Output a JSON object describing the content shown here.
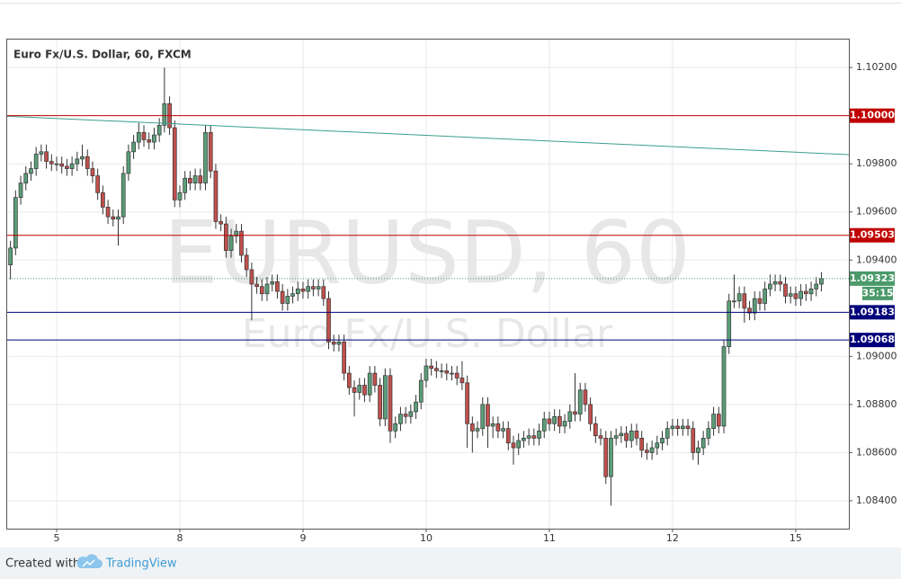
{
  "chart_data": {
    "type": "candlestick",
    "title": "Euro Fx/U.S. Dollar, 60, FXCM",
    "watermark": "EURUSD, 60",
    "watermark_subtitle": "Euro Fx/U.S. Dollar",
    "footer_text": "Created with",
    "footer_brand": "TradingView",
    "up_color": "#5a9e78",
    "down_color": "#c0504d",
    "xlim": [
      -9.81,
      154.35
    ],
    "xticks": [
      {
        "value": 0,
        "label": "5"
      },
      {
        "value": 24,
        "label": "8"
      },
      {
        "value": 48,
        "label": "9"
      },
      {
        "value": 72,
        "label": "10"
      },
      {
        "value": 96,
        "label": "11"
      },
      {
        "value": 120,
        "label": "12"
      },
      {
        "value": 144,
        "label": "15"
      }
    ],
    "ylim": [
      1.08284,
      1.1032
    ],
    "yticks": [
      {
        "value": 1.102,
        "label": "1.10200"
      },
      {
        "value": 1.098,
        "label": "1.09800"
      },
      {
        "value": 1.096,
        "label": "1.09600"
      },
      {
        "value": 1.094,
        "label": "1.09400"
      },
      {
        "value": 1.09,
        "label": "1.09000"
      },
      {
        "value": 1.088,
        "label": "1.08800"
      },
      {
        "value": 1.086,
        "label": "1.08600"
      },
      {
        "value": 1.084,
        "label": "1.08400"
      }
    ],
    "grid": true,
    "x": [
      -9,
      -8,
      -7,
      -6,
      -5,
      -4,
      -3,
      -2,
      -1,
      0,
      1,
      2,
      3,
      4,
      5,
      6,
      7,
      8,
      9,
      10,
      11,
      12,
      13,
      14,
      15,
      16,
      17,
      18,
      19,
      20,
      21,
      22,
      23,
      24,
      25,
      26,
      27,
      28,
      29,
      30,
      31,
      32,
      33,
      34,
      35,
      36,
      37,
      38,
      39,
      40,
      41,
      42,
      43,
      44,
      45,
      46,
      47,
      48,
      49,
      50,
      51,
      52,
      53,
      54,
      55,
      56,
      57,
      58,
      59,
      60,
      61,
      62,
      63,
      64,
      65,
      66,
      67,
      68,
      69,
      70,
      71,
      72,
      73,
      74,
      75,
      76,
      77,
      78,
      79,
      80,
      81,
      82,
      83,
      84,
      85,
      86,
      87,
      88,
      89,
      90,
      91,
      92,
      93,
      94,
      95,
      96,
      97,
      98,
      99,
      100,
      101,
      102,
      103,
      104,
      105,
      106,
      107,
      108,
      109,
      110,
      111,
      112,
      113,
      114,
      115,
      116,
      117,
      118,
      119,
      120,
      121,
      122,
      123,
      124,
      125,
      126,
      127,
      128,
      129,
      130,
      131,
      132,
      133,
      134,
      135,
      136,
      137,
      138,
      139,
      140,
      141,
      142,
      143,
      144,
      145,
      146,
      147,
      148,
      149
    ],
    "open": [
      1.0938,
      1.0945,
      1.0966,
      1.0972,
      1.0976,
      1.0978,
      1.0984,
      1.0985,
      1.0981,
      1.098,
      1.098,
      1.0979,
      1.0978,
      1.098,
      1.0982,
      1.0983,
      1.0978,
      1.0975,
      1.0968,
      1.0962,
      1.0958,
      1.0957,
      1.0958,
      1.0976,
      1.0985,
      1.0989,
      1.0993,
      1.099,
      1.0989,
      1.0992,
      1.0996,
      1.1005,
      1.0995,
      1.0965,
      1.0968,
      1.0974,
      1.0972,
      1.0975,
      1.0972,
      1.0993,
      1.0977,
      1.0956,
      1.0955,
      1.0944,
      1.095,
      1.0952,
      1.0942,
      1.0936,
      1.093,
      1.0929,
      1.0926,
      1.093,
      1.0931,
      1.0927,
      1.0922,
      1.0925,
      1.0926,
      1.0928,
      1.0927,
      1.0929,
      1.0928,
      1.0929,
      1.0924,
      1.0906,
      1.0905,
      1.0906,
      1.0893,
      1.0887,
      1.0885,
      1.0888,
      1.0884,
      1.0893,
      1.0888,
      1.0874,
      1.0892,
      1.0869,
      1.0872,
      1.0876,
      1.0875,
      1.0877,
      1.0881,
      1.089,
      1.0896,
      1.0895,
      1.0894,
      1.0894,
      1.0893,
      1.0893,
      1.0891,
      1.0889,
      1.0872,
      1.0869,
      1.087,
      1.088,
      1.0871,
      1.0872,
      1.0869,
      1.087,
      1.0864,
      1.0862,
      1.0865,
      1.0866,
      1.0867,
      1.0866,
      1.0869,
      1.0874,
      1.0872,
      1.0875,
      1.0871,
      1.0873,
      1.0877,
      1.0876,
      1.0886,
      1.088,
      1.0872,
      1.0867,
      1.0866,
      1.085,
      1.0866,
      1.0867,
      1.0868,
      1.0865,
      1.0869,
      1.0866,
      1.0861,
      1.086,
      1.0862,
      1.0864,
      1.0866,
      1.087,
      1.0871,
      1.087,
      1.0871,
      1.087,
      1.086,
      1.0862,
      1.0866,
      1.087,
      1.0876,
      1.0871,
      1.0904,
      1.0923,
      1.0923,
      1.0926,
      1.092,
      1.0918,
      1.0924,
      1.0922,
      1.0928,
      1.093,
      1.0931,
      1.093,
      1.0925,
      1.0926,
      1.0924,
      1.0927,
      1.0926,
      1.0928,
      1.093
    ],
    "high": [
      1.0948,
      1.0969,
      1.0975,
      1.0979,
      1.0981,
      1.0987,
      1.0988,
      1.0988,
      1.0984,
      1.0983,
      1.0983,
      1.0982,
      1.0983,
      1.0985,
      1.0988,
      1.0986,
      1.0981,
      1.0978,
      1.0971,
      1.0965,
      1.0961,
      1.0961,
      1.0979,
      1.0988,
      1.0992,
      1.0997,
      1.0996,
      1.0993,
      1.0995,
      1.0999,
      1.102,
      1.1008,
      1.0998,
      1.0971,
      1.0977,
      1.0977,
      1.0978,
      1.0978,
      1.0996,
      1.0996,
      1.098,
      1.0959,
      1.0958,
      1.0953,
      1.0955,
      1.0955,
      1.0945,
      1.0939,
      1.0933,
      1.0932,
      1.0933,
      1.0934,
      1.0934,
      1.093,
      1.0928,
      1.0929,
      1.0931,
      1.0931,
      1.0932,
      1.0932,
      1.0932,
      1.0932,
      1.0927,
      1.0909,
      1.0909,
      1.0909,
      1.0896,
      1.089,
      1.0891,
      1.0891,
      1.0896,
      1.0896,
      1.0891,
      1.0895,
      1.0895,
      1.0875,
      1.0879,
      1.0879,
      1.088,
      1.0884,
      1.0893,
      1.0899,
      1.0899,
      1.0898,
      1.0897,
      1.0897,
      1.0896,
      1.0896,
      1.0898,
      1.0892,
      1.0875,
      1.0873,
      1.0883,
      1.0883,
      1.0875,
      1.0875,
      1.0873,
      1.0873,
      1.0867,
      1.0868,
      1.0869,
      1.087,
      1.087,
      1.0872,
      1.0877,
      1.0877,
      1.0878,
      1.0878,
      1.0876,
      1.088,
      1.0893,
      1.0889,
      1.0889,
      1.0883,
      1.0875,
      1.087,
      1.0869,
      1.0869,
      1.087,
      1.0871,
      1.0871,
      1.0872,
      1.0872,
      1.0869,
      1.0864,
      1.0865,
      1.0867,
      1.0869,
      1.0873,
      1.0874,
      1.0874,
      1.0874,
      1.0874,
      1.0873,
      1.0865,
      1.0869,
      1.0873,
      1.0879,
      1.0879,
      1.0907,
      1.0926,
      1.0934,
      1.0929,
      1.0929,
      1.0923,
      1.0927,
      1.0927,
      1.0931,
      1.0934,
      1.0934,
      1.0934,
      1.0933,
      1.0929,
      1.0929,
      1.093,
      1.093,
      1.0931,
      1.0933,
      1.0935
    ],
    "low": [
      1.0932,
      1.0942,
      1.0963,
      1.0969,
      1.0973,
      1.0975,
      1.0981,
      1.0978,
      1.0977,
      1.0977,
      1.0976,
      1.0975,
      1.0975,
      1.0977,
      1.0979,
      1.0975,
      1.0972,
      1.0965,
      1.0959,
      1.0955,
      1.0954,
      1.0946,
      1.0955,
      1.0973,
      1.0982,
      1.0986,
      1.0987,
      1.0986,
      1.0986,
      1.0989,
      1.0993,
      1.0992,
      1.0962,
      1.0962,
      1.0965,
      1.0969,
      1.0969,
      1.0969,
      1.0969,
      1.0974,
      1.0953,
      1.0952,
      1.0941,
      1.0941,
      1.0947,
      1.0939,
      1.0933,
      1.0915,
      1.0926,
      1.0923,
      1.0923,
      1.0927,
      1.0924,
      1.0919,
      1.0919,
      1.0922,
      1.0923,
      1.0924,
      1.0924,
      1.0925,
      1.0925,
      1.0921,
      1.0903,
      1.0902,
      1.0902,
      1.089,
      1.0884,
      1.0875,
      1.0882,
      1.0881,
      1.0881,
      1.0885,
      1.0871,
      1.0871,
      1.0864,
      1.0866,
      1.0869,
      1.0872,
      1.0872,
      1.0874,
      1.0878,
      1.0887,
      1.0892,
      1.0891,
      1.0891,
      1.089,
      1.089,
      1.0888,
      1.0886,
      1.0862,
      1.086,
      1.0866,
      1.0867,
      1.0862,
      1.0866,
      1.0866,
      1.0866,
      1.0861,
      1.0855,
      1.0859,
      1.0862,
      1.0863,
      1.0863,
      1.0863,
      1.0866,
      1.0869,
      1.0869,
      1.0868,
      1.0868,
      1.087,
      1.0873,
      1.0873,
      1.0877,
      1.0869,
      1.0864,
      1.0863,
      1.0847,
      1.0838,
      1.0863,
      1.0864,
      1.0862,
      1.0862,
      1.0863,
      1.0858,
      1.0857,
      1.0857,
      1.0859,
      1.0861,
      1.0863,
      1.0867,
      1.0867,
      1.0867,
      1.0867,
      1.0857,
      1.0855,
      1.0859,
      1.0863,
      1.0867,
      1.0868,
      1.0868,
      1.0901,
      1.092,
      1.092,
      1.0914,
      1.0915,
      1.0915,
      1.0919,
      1.0919,
      1.0925,
      1.0927,
      1.0927,
      1.0922,
      1.0922,
      1.0921,
      1.0921,
      1.0923,
      1.0923,
      1.0925,
      1.0927
    ],
    "close": [
      1.0945,
      1.0966,
      1.0972,
      1.0976,
      1.0978,
      1.0984,
      1.0985,
      1.0981,
      1.098,
      1.098,
      1.0979,
      1.0978,
      1.098,
      1.0982,
      1.0983,
      1.0978,
      1.0975,
      1.0968,
      1.0962,
      1.0958,
      1.0957,
      1.0958,
      1.0976,
      1.0985,
      1.0989,
      1.0993,
      1.099,
      1.0989,
      1.0992,
      1.0996,
      1.1005,
      1.0995,
      1.0965,
      1.0968,
      1.0974,
      1.0972,
      1.0975,
      1.0972,
      1.0993,
      1.0977,
      1.0956,
      1.0955,
      1.0944,
      1.095,
      1.0952,
      1.0942,
      1.0936,
      1.093,
      1.0929,
      1.0926,
      1.093,
      1.0931,
      1.0927,
      1.0922,
      1.0925,
      1.0926,
      1.0928,
      1.0927,
      1.0929,
      1.0928,
      1.0929,
      1.0924,
      1.0906,
      1.0905,
      1.0906,
      1.0893,
      1.0887,
      1.0885,
      1.0888,
      1.0884,
      1.0893,
      1.0888,
      1.0874,
      1.0892,
      1.0869,
      1.0872,
      1.0876,
      1.0875,
      1.0877,
      1.0881,
      1.089,
      1.0896,
      1.0895,
      1.0894,
      1.0894,
      1.0893,
      1.0893,
      1.0891,
      1.0889,
      1.0872,
      1.0869,
      1.087,
      1.088,
      1.0871,
      1.0872,
      1.0869,
      1.087,
      1.0864,
      1.0862,
      1.0865,
      1.0866,
      1.0867,
      1.0866,
      1.0869,
      1.0874,
      1.0872,
      1.0875,
      1.0871,
      1.0873,
      1.0877,
      1.0876,
      1.0886,
      1.088,
      1.0872,
      1.0867,
      1.0866,
      1.085,
      1.0866,
      1.0867,
      1.0868,
      1.0865,
      1.0869,
      1.0866,
      1.0861,
      1.086,
      1.0862,
      1.0864,
      1.0866,
      1.087,
      1.0871,
      1.087,
      1.0871,
      1.087,
      1.086,
      1.0862,
      1.0866,
      1.087,
      1.0876,
      1.0871,
      1.0904,
      1.0923,
      1.0923,
      1.0926,
      1.092,
      1.0918,
      1.0924,
      1.0922,
      1.0928,
      1.093,
      1.0931,
      1.093,
      1.0925,
      1.0926,
      1.0924,
      1.0927,
      1.0926,
      1.0928,
      1.093,
      1.09323
    ],
    "levels": [
      {
        "value": 1.1,
        "label": "1.10000",
        "color": "#c00000"
      },
      {
        "value": 1.09503,
        "color": "#c00000"
      },
      {
        "value": 1.09183,
        "color": "#00007a"
      },
      {
        "value": 1.09068,
        "color": "#00007a"
      }
    ],
    "trend_line": {
      "x": [
        -9.81,
        154.35
      ],
      "y": [
        1.09998,
        1.09838
      ],
      "color": "#3a9e8e"
    },
    "last_price": 1.09323,
    "last_price_color": "#4a9a6a",
    "countdown": "35:15"
  }
}
